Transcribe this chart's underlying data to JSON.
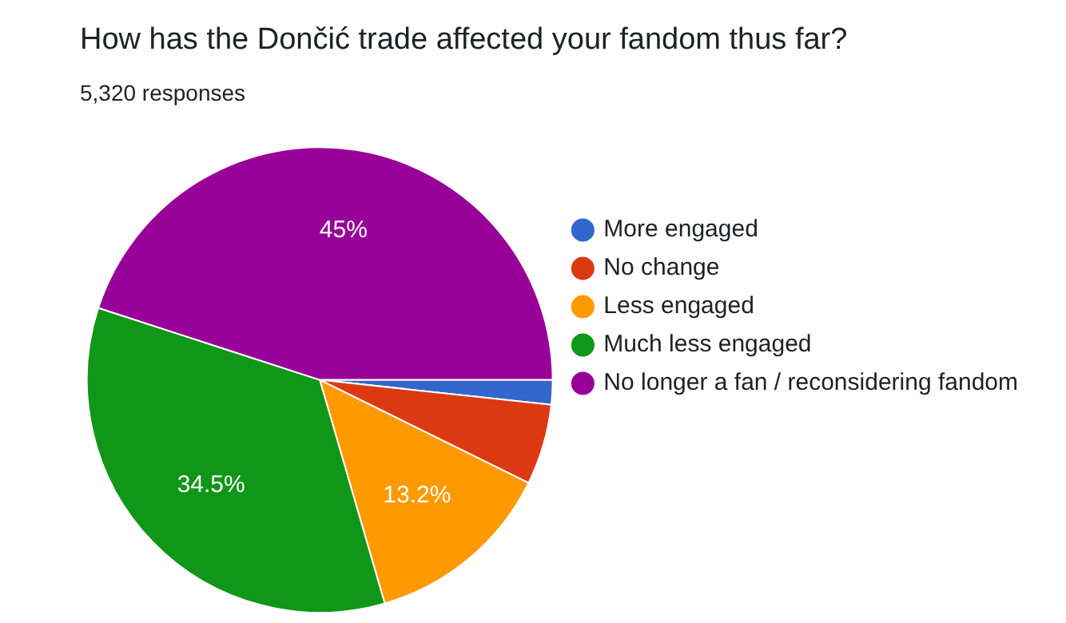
{
  "chart_data": {
    "type": "pie",
    "title": "How has the Dončić trade affected your fandom thus far?",
    "subtitle": "5,320 responses",
    "categories": [
      "More engaged",
      "No change",
      "Less engaged",
      "Much less engaged",
      "No longer a fan / reconsidering fandom"
    ],
    "values": [
      1.7,
      5.6,
      13.2,
      34.5,
      45
    ],
    "value_labels": [
      null,
      null,
      "13.2%",
      "34.5%",
      "45%"
    ],
    "colors": [
      "#3366cc",
      "#dc3912",
      "#ff9900",
      "#109618",
      "#990099"
    ],
    "legend": "right"
  }
}
